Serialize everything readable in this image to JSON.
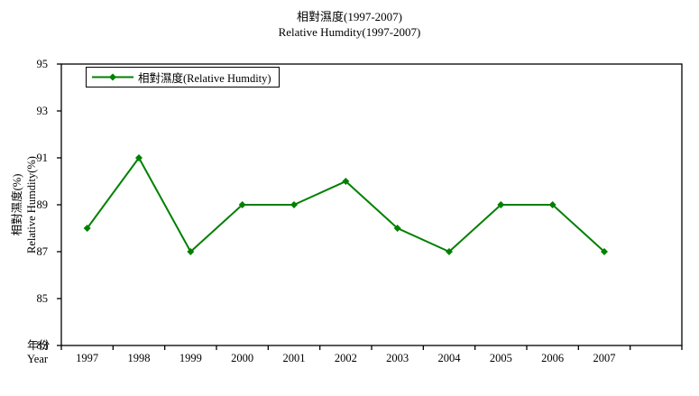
{
  "title": {
    "zh": "相對濕度(1997-2007)",
    "en": "Relative Humdity(1997-2007)"
  },
  "legend": {
    "label": "相對濕度(Relative Humdity)"
  },
  "axes": {
    "y_title_zh": "相對濕度(%)",
    "y_title_en": "Relative Humdity(%)",
    "x_title_zh": "年份",
    "x_title_en": "Year"
  },
  "colors": {
    "series": "#008000",
    "axis": "#000000",
    "text": "#000000",
    "background": "#ffffff"
  },
  "chart_data": {
    "type": "line",
    "title": "相對濕度(1997-2007) Relative Humdity(1997-2007)",
    "categories": [
      "1997",
      "1998",
      "1999",
      "2000",
      "2001",
      "2002",
      "2003",
      "2004",
      "2005",
      "2006",
      "2007"
    ],
    "series": [
      {
        "name": "相對濕度(Relative Humdity)",
        "values": [
          88,
          91,
          87,
          89,
          89,
          90,
          88,
          87,
          89,
          89,
          87
        ],
        "color": "#008000",
        "marker": "diamond"
      }
    ],
    "xlabel": "年份 Year",
    "ylabel": "相對濕度(%) Relative Humdity(%)",
    "ylim": [
      83,
      95
    ],
    "y_tick_step": 2,
    "x_slot_count": 12,
    "grid": false,
    "legend_position": "top-left-inside"
  }
}
